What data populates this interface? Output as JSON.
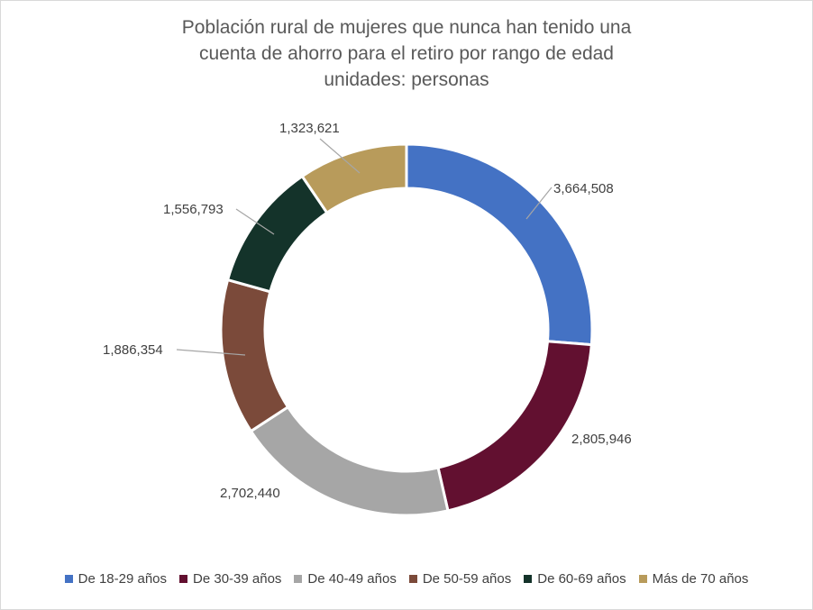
{
  "chart_data": {
    "type": "pie",
    "variant": "doughnut",
    "title_lines": [
      "Población rural de mujeres que nunca han tenido una",
      "cuenta de ahorro para el retiro por rango de edad",
      "unidades: personas"
    ],
    "categories": [
      "De 18-29 años",
      "De 30-39 años",
      "De 40-49 años",
      "De 50-59 años",
      "De 60-69 años",
      "Más de 70 años"
    ],
    "values": [
      3664508,
      2805946,
      2702440,
      1886354,
      1556793,
      1323621
    ],
    "value_labels": [
      "3,664,508",
      "2,805,946",
      "2,702,440",
      "1,886,354",
      "1,556,793",
      "1,323,621"
    ],
    "colors": [
      "#4472c4",
      "#621030",
      "#a6a6a6",
      "#7b4a3a",
      "#14332a",
      "#b89b5b"
    ],
    "legend_position": "bottom"
  }
}
